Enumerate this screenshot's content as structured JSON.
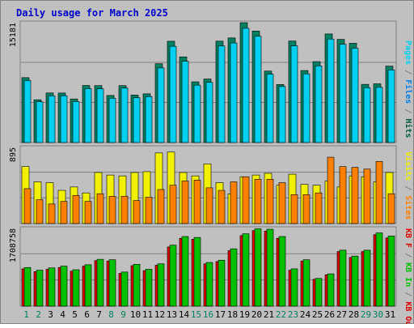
{
  "colors": {
    "background": "#c0c0c0",
    "panel": "#c0c0c0",
    "border": "#808080",
    "grid": "#808080",
    "title": "#0000cc",
    "pages": "#00d0f0",
    "files": "#0080f0",
    "hits": "#005a42",
    "hits_fill": "#008060",
    "visits": "#f0f000",
    "sites": "#ff8000",
    "kb_in": "#00c000",
    "kb_out": "#e00000",
    "weekday": "#000000",
    "weekend": "#008060"
  },
  "chart_data": {
    "type": "bar",
    "title": "Daily usage for March 2025",
    "categories": [
      "1",
      "2",
      "3",
      "4",
      "5",
      "6",
      "7",
      "8",
      "9",
      "10",
      "11",
      "12",
      "13",
      "14",
      "15",
      "16",
      "17",
      "18",
      "19",
      "20",
      "21",
      "22",
      "23",
      "24",
      "25",
      "26",
      "27",
      "28",
      "29",
      "30",
      "31"
    ],
    "weekend_days": [
      "1",
      "2",
      "8",
      "9",
      "15",
      "16",
      "22",
      "23",
      "29",
      "30"
    ],
    "panels": [
      {
        "name": "hits",
        "ymax": 15181,
        "ymax_label": "15181",
        "legend": [
          {
            "text": "Pages",
            "color_key": "pages"
          },
          {
            "text": " / ",
            "color_key": "border"
          },
          {
            "text": "Files",
            "color_key": "files"
          },
          {
            "text": " / ",
            "color_key": "border"
          },
          {
            "text": "Hits",
            "color_key": "hits"
          }
        ],
        "series": [
          {
            "name": "Hits",
            "color_key": "hits_fill",
            "values": [
              8220,
              5420,
              6280,
              6270,
              5520,
              7230,
              7210,
              5960,
              7210,
              6020,
              6170,
              9980,
              12830,
              10850,
              7690,
              8050,
              12840,
              13250,
              15181,
              14120,
              9050,
              7350,
              12860,
              9120,
              10250,
              13750,
              13070,
              12570,
              7370,
              7440,
              9680
            ]
          },
          {
            "name": "Files",
            "color_key": "files",
            "values": [
              7850,
              5160,
              5910,
              5930,
              5190,
              6830,
              6810,
              5600,
              6900,
              5680,
              5820,
              9450,
              12190,
              10290,
              7270,
              7630,
              12230,
              12610,
              14470,
              13460,
              8660,
              7090,
              12240,
              8700,
              9710,
              13110,
              12440,
              11950,
              6950,
              6990,
              9200
            ]
          },
          {
            "name": "Pages",
            "color_key": "pages",
            "values": [
              7850,
              5160,
              5910,
              5930,
              5190,
              6830,
              6810,
              5600,
              6900,
              5680,
              5820,
              9450,
              12190,
              10290,
              7270,
              7630,
              12230,
              12610,
              14470,
              13460,
              8660,
              7090,
              12240,
              8700,
              9710,
              13110,
              12440,
              11950,
              6950,
              6990,
              9200
            ]
          }
        ]
      },
      {
        "name": "visits",
        "ymax": 895,
        "ymax_label": "895",
        "legend": [
          {
            "text": "Visits",
            "color_key": "visits"
          },
          {
            "text": " / ",
            "color_key": "border"
          },
          {
            "text": "Sites",
            "color_key": "sites"
          }
        ],
        "series": [
          {
            "name": "Visits",
            "color_key": "visits",
            "values": [
              670,
              490,
              480,
              390,
              430,
              360,
              600,
              570,
              560,
              600,
              610,
              830,
              840,
              600,
              560,
              700,
              480,
              350,
              550,
              570,
              590,
              450,
              580,
              460,
              450,
              500,
              430,
              560,
              550,
              490,
              600
            ]
          },
          {
            "name": "Sites",
            "color_key": "sites",
            "values": [
              410,
              280,
              230,
              260,
              330,
              260,
              350,
              320,
              320,
              270,
              310,
              400,
              450,
              500,
              510,
              420,
              390,
              490,
              550,
              520,
              520,
              480,
              340,
              340,
              360,
              780,
              670,
              660,
              640,
              730,
              350
            ]
          }
        ]
      },
      {
        "name": "kbytes",
        "ymax": 1708758,
        "ymax_label": "1708758",
        "legend": [
          {
            "text": "KB F",
            "color_key": "kb_out"
          },
          {
            "text": " / ",
            "color_key": "border"
          },
          {
            "text": "KB In",
            "color_key": "kb_in"
          },
          {
            "text": " / ",
            "color_key": "border"
          },
          {
            "text": "KB Out",
            "color_key": "kb_out"
          }
        ],
        "series": [
          {
            "name": "KB In",
            "color_key": "kb_in",
            "values": [
              850000,
              790000,
              840000,
              880000,
              800000,
              910000,
              1030000,
              1020000,
              750000,
              920000,
              810000,
              930000,
              1340000,
              1530000,
              1510000,
              960000,
              1010000,
              1260000,
              1590000,
              1700000,
              1690000,
              1530000,
              820000,
              1020000,
              610000,
              710000,
              1230000,
              1100000,
              1230000,
              1610000,
              1540000
            ]
          },
          {
            "name": "KB Out",
            "color_key": "kb_out",
            "values": [
              820000,
              760000,
              810000,
              850000,
              770000,
              880000,
              1000000,
              990000,
              720000,
              890000,
              780000,
              900000,
              1300000,
              1490000,
              1470000,
              930000,
              980000,
              1220000,
              1550000,
              1660000,
              1650000,
              1490000,
              790000,
              990000,
              590000,
              690000,
              1200000,
              1070000,
              1200000,
              1570000,
              1500000
            ]
          }
        ]
      }
    ]
  }
}
